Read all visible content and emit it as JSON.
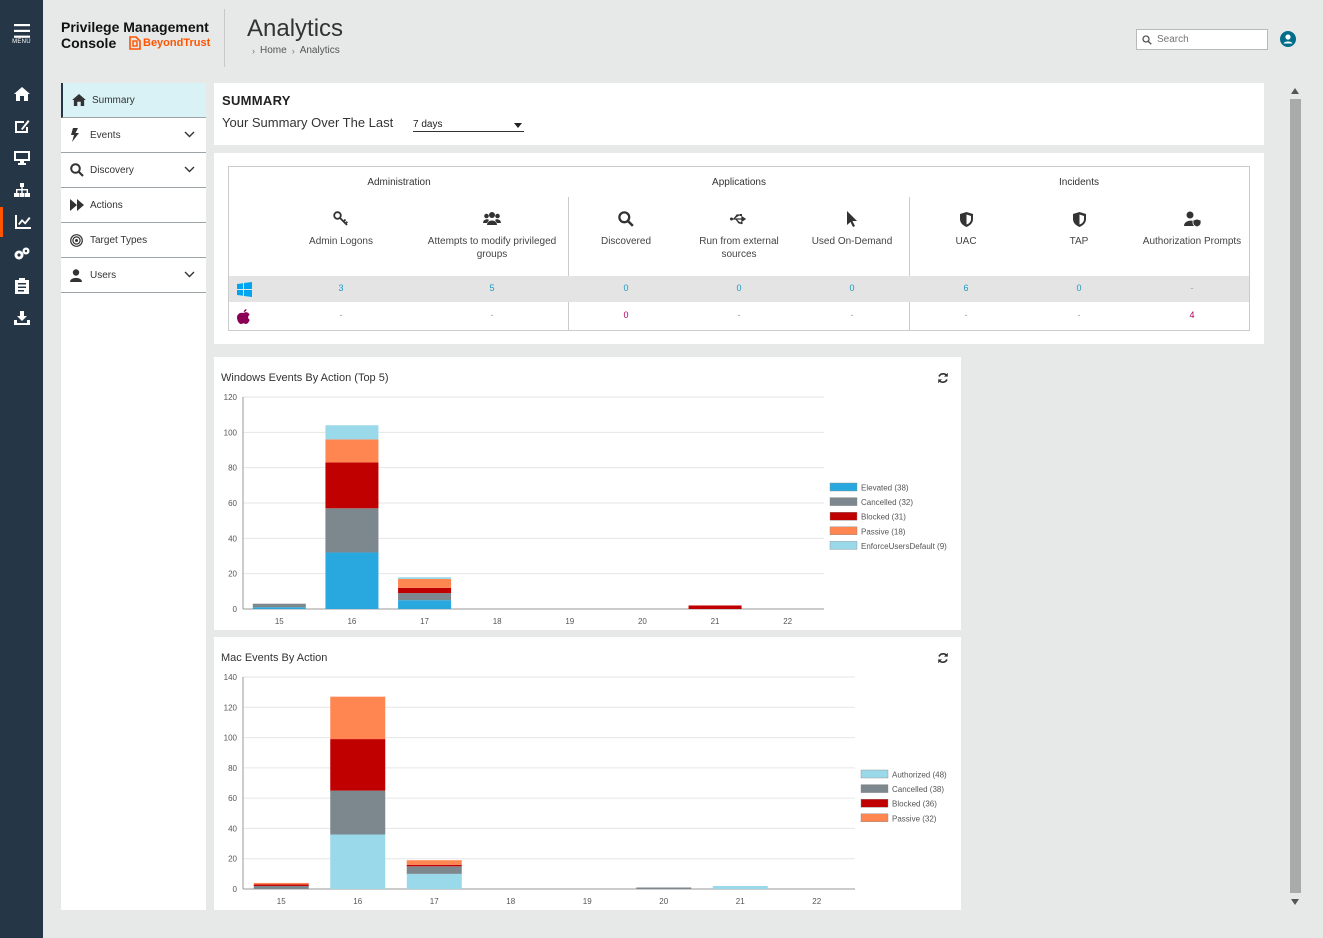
{
  "rail": {
    "menu_label": "MENU",
    "items": [
      "home-icon",
      "deploy-icon",
      "computers-icon",
      "groups-icon",
      "analytics-icon",
      "settings-icon",
      "clipboard-icon",
      "download-icon"
    ],
    "active_index": 4,
    "accent_color": "#ff5500"
  },
  "header": {
    "brand_line1": "Privilege Management",
    "brand_line2": "Console",
    "logo_text": "BeyondTrust",
    "title": "Analytics",
    "breadcrumb": [
      "Home",
      "Analytics"
    ],
    "search_placeholder": "Search"
  },
  "sidenav": {
    "items": [
      {
        "label": "Summary",
        "icon": "home-icon",
        "active": true
      },
      {
        "label": "Events",
        "icon": "lightning-icon",
        "expandable": true
      },
      {
        "label": "Discovery",
        "icon": "search-icon",
        "expandable": true
      },
      {
        "label": "Actions",
        "icon": "fast-forward-icon"
      },
      {
        "label": "Target Types",
        "icon": "target-icon"
      },
      {
        "label": "Users",
        "icon": "user-icon",
        "expandable": true
      }
    ]
  },
  "summary": {
    "heading": "SUMMARY",
    "period_label": "Your Summary Over The Last",
    "period_value": "7 days",
    "groups": [
      "Administration",
      "Applications",
      "Incidents"
    ],
    "columns": [
      {
        "label": "Admin Logons",
        "icon": "key-icon"
      },
      {
        "label": "Attempts to modify privileged groups",
        "icon": "users-group-icon"
      },
      {
        "label": "Discovered",
        "icon": "search-icon"
      },
      {
        "label": "Run from external sources",
        "icon": "usb-icon"
      },
      {
        "label": "Used On-Demand",
        "icon": "cursor-icon"
      },
      {
        "label": "UAC",
        "icon": "shield-icon"
      },
      {
        "label": "TAP",
        "icon": "shield-icon"
      },
      {
        "label": "Authorization Prompts",
        "icon": "user-shield-icon"
      }
    ],
    "windows_row": [
      "3",
      "5",
      "0",
      "0",
      "0",
      "6",
      "0",
      "-"
    ],
    "mac_row": [
      "-",
      "-",
      "0",
      "-",
      "-",
      "-",
      "-",
      "4"
    ]
  },
  "chart_data": [
    {
      "type": "bar",
      "stacked": true,
      "title": "Windows Events By Action (Top 5)",
      "categories": [
        "15",
        "16",
        "17",
        "18",
        "19",
        "20",
        "21",
        "22"
      ],
      "ylim": [
        0,
        120
      ],
      "yticks": [
        0,
        20,
        40,
        60,
        80,
        100,
        120
      ],
      "grid": true,
      "legend_position": "right",
      "series": [
        {
          "name": "Elevated (38)",
          "color": "#29a8e0",
          "values": [
            1,
            32,
            5,
            0,
            0,
            0,
            0,
            0
          ]
        },
        {
          "name": "Cancelled (32)",
          "color": "#7c878e",
          "values": [
            2,
            25,
            4,
            0,
            0,
            0,
            0,
            0
          ]
        },
        {
          "name": "Blocked (31)",
          "color": "#c00000",
          "values": [
            0,
            26,
            3,
            0,
            0,
            0,
            2,
            0
          ]
        },
        {
          "name": "Passive (18)",
          "color": "#ff8651",
          "values": [
            0,
            13,
            5,
            0,
            0,
            0,
            0,
            0
          ]
        },
        {
          "name": "EnforceUsersDefault (9)",
          "color": "#99d9ea",
          "values": [
            0,
            8,
            1,
            0,
            0,
            0,
            0,
            0
          ]
        }
      ]
    },
    {
      "type": "bar",
      "stacked": true,
      "title": "Mac Events By Action",
      "categories": [
        "15",
        "16",
        "17",
        "18",
        "19",
        "20",
        "21",
        "22"
      ],
      "ylim": [
        0,
        140
      ],
      "yticks": [
        0,
        20,
        40,
        60,
        80,
        100,
        120,
        140
      ],
      "grid": true,
      "legend_position": "right",
      "series": [
        {
          "name": "Authorized (48)",
          "color": "#99d9ea",
          "values": [
            0,
            36,
            10,
            0,
            0,
            0,
            2,
            0
          ]
        },
        {
          "name": "Cancelled (38)",
          "color": "#7c878e",
          "values": [
            2,
            29,
            5,
            0,
            0,
            1,
            0,
            0
          ]
        },
        {
          "name": "Blocked (36)",
          "color": "#c00000",
          "values": [
            1,
            34,
            1,
            0,
            0,
            0,
            0,
            0
          ]
        },
        {
          "name": "Passive (32)",
          "color": "#ff8651",
          "values": [
            1,
            28,
            3,
            0,
            0,
            0,
            0,
            0
          ]
        }
      ]
    }
  ]
}
